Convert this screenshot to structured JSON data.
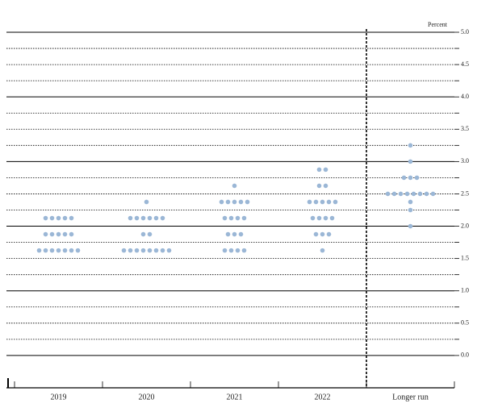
{
  "chart_data": {
    "type": "dot",
    "y_axis_label": "Percent",
    "categories": [
      "2019",
      "2020",
      "2021",
      "2022",
      "Longer run"
    ],
    "dots": [
      [
        2.125,
        2.125,
        2.125,
        2.125,
        2.125,
        1.875,
        1.875,
        1.875,
        1.875,
        1.875,
        1.625,
        1.625,
        1.625,
        1.625,
        1.625,
        1.625,
        1.625
      ],
      [
        2.375,
        2.125,
        2.125,
        2.125,
        2.125,
        2.125,
        2.125,
        1.875,
        1.875,
        1.625,
        1.625,
        1.625,
        1.625,
        1.625,
        1.625,
        1.625,
        1.625
      ],
      [
        2.625,
        2.375,
        2.375,
        2.375,
        2.375,
        2.375,
        2.125,
        2.125,
        2.125,
        2.125,
        1.875,
        1.875,
        1.875,
        1.625,
        1.625,
        1.625,
        1.625
      ],
      [
        2.875,
        2.875,
        2.625,
        2.625,
        2.375,
        2.375,
        2.375,
        2.375,
        2.375,
        2.125,
        2.125,
        2.125,
        2.125,
        1.875,
        1.875,
        1.875,
        1.625
      ],
      [
        3.25,
        3.0,
        2.75,
        2.75,
        2.75,
        2.5,
        2.5,
        2.5,
        2.5,
        2.5,
        2.5,
        2.5,
        2.5,
        2.375,
        2.25,
        2.0
      ]
    ],
    "color": "#9bb7d6",
    "ylim": [
      -0.5,
      5.0
    ],
    "yticks": [
      {
        "value": 0,
        "label": "0.0"
      },
      0.5,
      {
        "value": 1,
        "label": "1.0"
      },
      1.5,
      {
        "value": 2,
        "label": "2.0"
      },
      2.5,
      {
        "value": 3,
        "label": "3.0"
      },
      3.5,
      {
        "value": 4,
        "label": "4.0"
      },
      4.5,
      {
        "value": 5,
        "label": "5.0"
      }
    ],
    "minor_yticks": [
      0.25,
      0.75,
      1.25,
      1.75,
      2.25,
      2.75,
      3.25,
      3.75,
      4.25,
      4.75
    ],
    "grid": true
  }
}
